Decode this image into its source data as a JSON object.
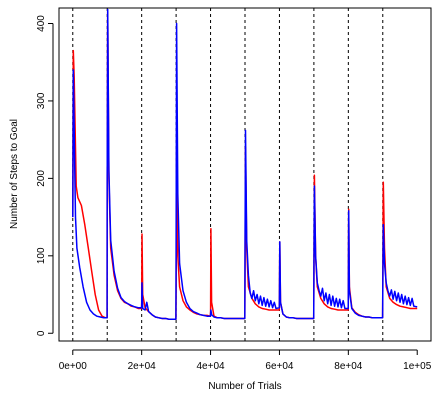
{
  "chart_data": {
    "type": "line",
    "title": "",
    "xlabel": "Number of Trials",
    "ylabel": "Number of Steps to Goal",
    "xlim": [
      -4000,
      104000
    ],
    "ylim": [
      -10,
      420
    ],
    "x_ticks": [
      0,
      20000,
      40000,
      60000,
      80000,
      100000
    ],
    "x_tick_labels": [
      "0e+00",
      "2e+04",
      "4e+04",
      "6e+04",
      "8e+04",
      "1e+05"
    ],
    "y_ticks": [
      0,
      100,
      200,
      300,
      400
    ],
    "y_tick_labels": [
      "0",
      "100",
      "200",
      "300",
      "400"
    ],
    "grid": false,
    "legend": "none",
    "vlines": [
      0,
      10000,
      20000,
      30000,
      40000,
      50000,
      60000,
      70000,
      80000,
      90000
    ],
    "series": [
      {
        "color": "#ff0000",
        "points": [
          [
            0,
            150
          ],
          [
            150,
            365
          ],
          [
            400,
            330
          ],
          [
            1000,
            190
          ],
          [
            1500,
            175
          ],
          [
            2500,
            165
          ],
          [
            3500,
            140
          ],
          [
            4500,
            110
          ],
          [
            5500,
            80
          ],
          [
            6500,
            50
          ],
          [
            7500,
            30
          ],
          [
            8500,
            22
          ],
          [
            9500,
            20
          ],
          [
            9950,
            20
          ],
          [
            10000,
            200
          ],
          [
            10150,
            415
          ],
          [
            10500,
            200
          ],
          [
            11000,
            110
          ],
          [
            12000,
            75
          ],
          [
            13000,
            55
          ],
          [
            14000,
            45
          ],
          [
            15000,
            40
          ],
          [
            16000,
            38
          ],
          [
            17000,
            35
          ],
          [
            18000,
            34
          ],
          [
            19000,
            32
          ],
          [
            19950,
            32
          ],
          [
            20000,
            40
          ],
          [
            20100,
            128
          ],
          [
            20300,
            50
          ],
          [
            21000,
            33
          ],
          [
            22000,
            28
          ],
          [
            23000,
            24
          ],
          [
            24000,
            21
          ],
          [
            25000,
            20
          ],
          [
            26000,
            19
          ],
          [
            27000,
            19
          ],
          [
            28000,
            18
          ],
          [
            29000,
            18
          ],
          [
            29950,
            18
          ],
          [
            30000,
            50
          ],
          [
            30150,
            238
          ],
          [
            30500,
            100
          ],
          [
            31000,
            60
          ],
          [
            32000,
            42
          ],
          [
            33000,
            34
          ],
          [
            34000,
            30
          ],
          [
            35000,
            27
          ],
          [
            36000,
            25
          ],
          [
            37000,
            24
          ],
          [
            38000,
            23
          ],
          [
            39000,
            23
          ],
          [
            39950,
            22
          ],
          [
            40000,
            30
          ],
          [
            40100,
            135
          ],
          [
            40300,
            40
          ],
          [
            41000,
            22
          ],
          [
            42000,
            20
          ],
          [
            43000,
            20
          ],
          [
            44000,
            19
          ],
          [
            45000,
            19
          ],
          [
            46000,
            19
          ],
          [
            47000,
            19
          ],
          [
            48000,
            19
          ],
          [
            49000,
            19
          ],
          [
            49950,
            19
          ],
          [
            50000,
            60
          ],
          [
            50150,
            240
          ],
          [
            50500,
            110
          ],
          [
            51000,
            60
          ],
          [
            52000,
            45
          ],
          [
            53000,
            38
          ],
          [
            54000,
            34
          ],
          [
            55000,
            32
          ],
          [
            56000,
            31
          ],
          [
            57000,
            30
          ],
          [
            58000,
            30
          ],
          [
            59000,
            30
          ],
          [
            59950,
            30
          ],
          [
            60000,
            40
          ],
          [
            60100,
            118
          ],
          [
            60300,
            40
          ],
          [
            61000,
            25
          ],
          [
            62000,
            21
          ],
          [
            63000,
            20
          ],
          [
            64000,
            20
          ],
          [
            65000,
            19
          ],
          [
            66000,
            19
          ],
          [
            67000,
            19
          ],
          [
            68000,
            19
          ],
          [
            69000,
            19
          ],
          [
            69950,
            19
          ],
          [
            70000,
            60
          ],
          [
            70150,
            204
          ],
          [
            70500,
            100
          ],
          [
            71000,
            60
          ],
          [
            72000,
            45
          ],
          [
            73000,
            38
          ],
          [
            74000,
            34
          ],
          [
            75000,
            32
          ],
          [
            76000,
            31
          ],
          [
            77000,
            30
          ],
          [
            78000,
            30
          ],
          [
            79000,
            30
          ],
          [
            79950,
            30
          ],
          [
            80000,
            50
          ],
          [
            80100,
            160
          ],
          [
            80300,
            60
          ],
          [
            81000,
            33
          ],
          [
            82000,
            27
          ],
          [
            83000,
            24
          ],
          [
            84000,
            22
          ],
          [
            85000,
            21
          ],
          [
            86000,
            21
          ],
          [
            87000,
            20
          ],
          [
            88000,
            20
          ],
          [
            89000,
            20
          ],
          [
            89950,
            20
          ],
          [
            90000,
            60
          ],
          [
            90150,
            195
          ],
          [
            90500,
            110
          ],
          [
            91000,
            60
          ],
          [
            92000,
            45
          ],
          [
            93000,
            40
          ],
          [
            94000,
            37
          ],
          [
            95000,
            35
          ],
          [
            96000,
            34
          ],
          [
            97000,
            33
          ],
          [
            98000,
            32
          ],
          [
            99000,
            32
          ],
          [
            100000,
            32
          ]
        ]
      },
      {
        "color": "#0000ff",
        "points": [
          [
            0,
            150
          ],
          [
            150,
            340
          ],
          [
            400,
            260
          ],
          [
            800,
            150
          ],
          [
            1200,
            110
          ],
          [
            2000,
            85
          ],
          [
            3000,
            60
          ],
          [
            4000,
            40
          ],
          [
            5000,
            30
          ],
          [
            6000,
            25
          ],
          [
            7000,
            22
          ],
          [
            8000,
            21
          ],
          [
            9000,
            20
          ],
          [
            9950,
            20
          ],
          [
            10000,
            200
          ],
          [
            10150,
            418
          ],
          [
            10500,
            210
          ],
          [
            11000,
            120
          ],
          [
            12000,
            80
          ],
          [
            13000,
            58
          ],
          [
            14000,
            46
          ],
          [
            15000,
            41
          ],
          [
            16000,
            38
          ],
          [
            17000,
            36
          ],
          [
            18000,
            34
          ],
          [
            19000,
            33
          ],
          [
            19950,
            33
          ],
          [
            20000,
            35
          ],
          [
            20100,
            65
          ],
          [
            20300,
            32
          ],
          [
            21000,
            30
          ],
          [
            21500,
            40
          ],
          [
            22000,
            28
          ],
          [
            23000,
            24
          ],
          [
            24000,
            21
          ],
          [
            25000,
            20
          ],
          [
            26000,
            19
          ],
          [
            27000,
            19
          ],
          [
            28000,
            18
          ],
          [
            29000,
            18
          ],
          [
            29950,
            18
          ],
          [
            30000,
            100
          ],
          [
            30150,
            400
          ],
          [
            30500,
            180
          ],
          [
            31000,
            90
          ],
          [
            32000,
            55
          ],
          [
            33000,
            40
          ],
          [
            34000,
            32
          ],
          [
            35000,
            28
          ],
          [
            36000,
            26
          ],
          [
            37000,
            24
          ],
          [
            38000,
            23
          ],
          [
            39000,
            22
          ],
          [
            39950,
            22
          ],
          [
            40000,
            25
          ],
          [
            40100,
            30
          ],
          [
            40300,
            24
          ],
          [
            41000,
            21
          ],
          [
            42000,
            20
          ],
          [
            43000,
            20
          ],
          [
            44000,
            19
          ],
          [
            45000,
            19
          ],
          [
            46000,
            19
          ],
          [
            47000,
            19
          ],
          [
            48000,
            19
          ],
          [
            49000,
            19
          ],
          [
            49950,
            19
          ],
          [
            50000,
            100
          ],
          [
            50150,
            262
          ],
          [
            50500,
            120
          ],
          [
            51000,
            75
          ],
          [
            51500,
            52
          ],
          [
            52000,
            45
          ],
          [
            52500,
            55
          ],
          [
            53000,
            42
          ],
          [
            53500,
            50
          ],
          [
            54000,
            38
          ],
          [
            54500,
            48
          ],
          [
            55000,
            36
          ],
          [
            55500,
            46
          ],
          [
            56000,
            35
          ],
          [
            56500,
            44
          ],
          [
            57000,
            34
          ],
          [
            57500,
            42
          ],
          [
            58000,
            33
          ],
          [
            58500,
            40
          ],
          [
            59000,
            32
          ],
          [
            59950,
            33
          ],
          [
            60000,
            40
          ],
          [
            60100,
            118
          ],
          [
            60300,
            40
          ],
          [
            61000,
            25
          ],
          [
            62000,
            21
          ],
          [
            63000,
            20
          ],
          [
            64000,
            20
          ],
          [
            65000,
            19
          ],
          [
            66000,
            19
          ],
          [
            67000,
            19
          ],
          [
            68000,
            19
          ],
          [
            69000,
            19
          ],
          [
            69950,
            19
          ],
          [
            70000,
            80
          ],
          [
            70150,
            190
          ],
          [
            70500,
            100
          ],
          [
            71000,
            65
          ],
          [
            71500,
            55
          ],
          [
            72000,
            48
          ],
          [
            72500,
            58
          ],
          [
            73000,
            42
          ],
          [
            73500,
            52
          ],
          [
            74000,
            38
          ],
          [
            74500,
            50
          ],
          [
            75000,
            36
          ],
          [
            75500,
            48
          ],
          [
            76000,
            35
          ],
          [
            76500,
            45
          ],
          [
            77000,
            34
          ],
          [
            77500,
            44
          ],
          [
            78000,
            33
          ],
          [
            78500,
            42
          ],
          [
            79000,
            32
          ],
          [
            79950,
            32
          ],
          [
            80000,
            40
          ],
          [
            80100,
            158
          ],
          [
            80300,
            55
          ],
          [
            81000,
            32
          ],
          [
            82000,
            26
          ],
          [
            83000,
            23
          ],
          [
            84000,
            22
          ],
          [
            85000,
            21
          ],
          [
            86000,
            21
          ],
          [
            87000,
            20
          ],
          [
            88000,
            20
          ],
          [
            89000,
            20
          ],
          [
            89950,
            20
          ],
          [
            90000,
            60
          ],
          [
            90150,
            140
          ],
          [
            90500,
            90
          ],
          [
            91000,
            65
          ],
          [
            91500,
            55
          ],
          [
            92000,
            48
          ],
          [
            92500,
            56
          ],
          [
            93000,
            44
          ],
          [
            93500,
            54
          ],
          [
            94000,
            42
          ],
          [
            94500,
            52
          ],
          [
            95000,
            40
          ],
          [
            95500,
            50
          ],
          [
            96000,
            38
          ],
          [
            96500,
            48
          ],
          [
            97000,
            37
          ],
          [
            97500,
            46
          ],
          [
            98000,
            36
          ],
          [
            98500,
            45
          ],
          [
            99000,
            35
          ],
          [
            100000,
            34
          ]
        ]
      }
    ]
  }
}
